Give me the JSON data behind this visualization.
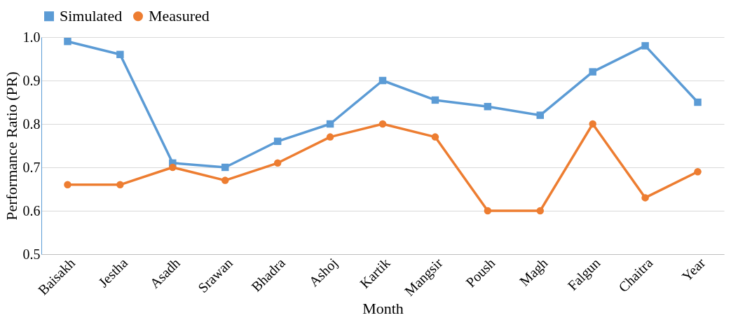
{
  "chart_data": {
    "type": "line",
    "xlabel": "Month",
    "ylabel": "Performance Ratio (PR)",
    "categories": [
      "Baisakh",
      "Jestha",
      "Asadh",
      "Srawan",
      "Bhadra",
      "Ashoj",
      "Kartik",
      "Mangsir",
      "Poush",
      "Magh",
      "Falgun",
      "Chaitra",
      "Year"
    ],
    "series": [
      {
        "name": "Simulated",
        "color": "#5b9bd5",
        "marker": "square",
        "values": [
          0.99,
          0.96,
          0.71,
          0.7,
          0.76,
          0.8,
          0.9,
          0.855,
          0.84,
          0.82,
          0.92,
          0.98,
          0.85
        ]
      },
      {
        "name": "Measured",
        "color": "#ed7d31",
        "marker": "circle",
        "values": [
          0.66,
          0.66,
          0.7,
          0.67,
          0.71,
          0.77,
          0.8,
          0.77,
          0.6,
          0.6,
          0.8,
          0.63,
          0.69
        ]
      }
    ],
    "ylim": [
      0.5,
      1.0
    ],
    "yticks": [
      {
        "value": 0.5,
        "label": "0.5"
      },
      {
        "value": 0.6,
        "label": "0.6"
      },
      {
        "value": 0.7,
        "label": "0.7"
      },
      {
        "value": 0.8,
        "label": "0.8"
      },
      {
        "value": 0.9,
        "label": "0.9"
      },
      {
        "value": 1.0,
        "label": "1.0"
      }
    ],
    "grid": "y",
    "legend": "top",
    "line_style": "solid"
  }
}
